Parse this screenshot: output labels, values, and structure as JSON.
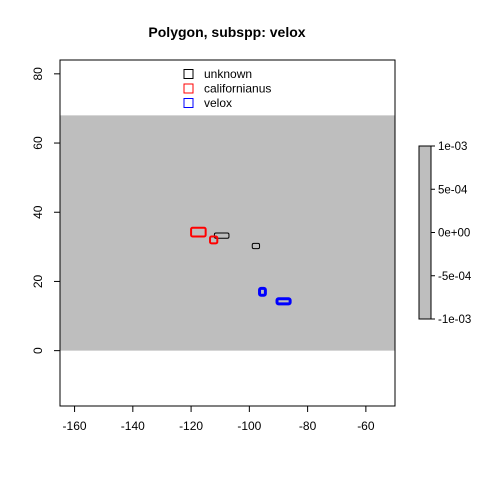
{
  "chart_data": {
    "type": "map",
    "title": "Polygon, subspp: velox",
    "xlim": [
      -165,
      -50
    ],
    "ylim": [
      -16,
      84
    ],
    "x_ticks": [
      -160,
      -140,
      -120,
      -100,
      -80,
      -60
    ],
    "y_ticks": [
      0,
      20,
      40,
      60,
      80
    ],
    "background_raster": {
      "extent_x": [
        -165,
        -50
      ],
      "extent_y": [
        0,
        68
      ],
      "fill": "#bebebe"
    },
    "legend": {
      "placement": "top-center",
      "entries": [
        {
          "label": "unknown",
          "color": "#000000"
        },
        {
          "label": "californianus",
          "color": "#ff0000"
        },
        {
          "label": "velox",
          "color": "#0000ff"
        }
      ]
    },
    "polygons": [
      {
        "series": "unknown",
        "color": "#000000",
        "stroke": 1,
        "xmin": -112,
        "xmax": -107,
        "ymin": 32.5,
        "ymax": 34
      },
      {
        "series": "unknown",
        "color": "#000000",
        "stroke": 1,
        "xmin": -99,
        "xmax": -96.5,
        "ymin": 29.5,
        "ymax": 31
      },
      {
        "series": "californianus",
        "color": "#ff0000",
        "stroke": 2,
        "xmin": -120,
        "xmax": -115,
        "ymin": 33,
        "ymax": 35.5
      },
      {
        "series": "californianus",
        "color": "#ff0000",
        "stroke": 2,
        "xmin": -113.5,
        "xmax": -111,
        "ymin": 31,
        "ymax": 33
      },
      {
        "series": "velox",
        "color": "#0000ff",
        "stroke": 3,
        "xmin": -96.5,
        "xmax": -94.5,
        "ymin": 16,
        "ymax": 18
      },
      {
        "series": "velox",
        "color": "#0000ff",
        "stroke": 3,
        "xmin": -90.5,
        "xmax": -86,
        "ymin": 13.5,
        "ymax": 15
      }
    ],
    "colorbar": {
      "ticks": [
        "1e-03",
        "5e-04",
        "0e+00",
        "-5e-04",
        "-1e-03"
      ],
      "fill": "#bebebe"
    }
  }
}
